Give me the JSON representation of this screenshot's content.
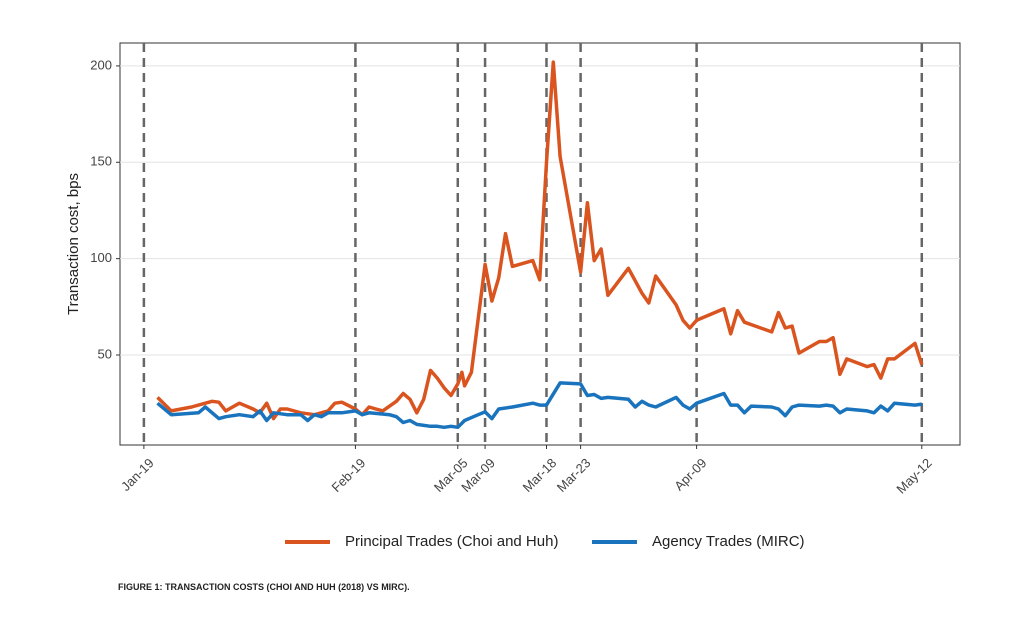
{
  "chart_data": {
    "type": "line",
    "y_label": "Transaction cost, bps",
    "caption": "FIGURE 1: TRANSACTION COSTS (CHOI AND HUH (2018) VS MIRC).",
    "xlim": [
      15.5,
      138.6
    ],
    "xticks": [
      {
        "value": 19,
        "label": "Jan-19"
      },
      {
        "value": 50,
        "label": "Feb-19"
      },
      {
        "value": 65,
        "label": "Mar-05"
      },
      {
        "value": 69,
        "label": "Mar-09"
      },
      {
        "value": 78,
        "label": "Mar-18"
      },
      {
        "value": 83,
        "label": "Mar-23"
      },
      {
        "value": 100,
        "label": "Apr-09"
      },
      {
        "value": 133,
        "label": "May-12"
      }
    ],
    "ylim": [
      3.3,
      211.9
    ],
    "yticks": [
      50,
      100,
      150,
      200
    ],
    "grid": true,
    "xtick_lines": "dashed",
    "legend": "bottom",
    "series": [
      {
        "name": "Principal Trades (Choi and Huh)",
        "color": "#d9541f",
        "x": [
          21,
          23,
          26,
          28,
          29,
          30,
          31,
          32,
          33,
          35,
          36,
          37,
          38,
          39,
          40,
          42,
          44,
          45,
          46,
          47,
          48,
          50,
          51,
          52,
          53,
          54,
          56,
          57,
          58,
          59,
          60,
          61,
          62,
          63,
          64,
          65,
          65.6,
          66,
          67,
          69,
          70,
          71,
          72,
          73,
          76,
          77,
          78,
          79,
          80,
          83,
          84,
          85,
          86,
          87,
          90,
          92,
          93,
          94,
          97,
          98,
          99,
          100,
          104,
          105,
          106,
          107,
          111,
          112,
          113,
          114,
          115,
          118,
          119,
          120,
          121,
          122,
          125,
          126,
          127,
          128,
          129,
          132,
          133
        ],
        "values": [
          28,
          21,
          23,
          25,
          26,
          25.5,
          21,
          23,
          25,
          22,
          20,
          25,
          17,
          22,
          22,
          20,
          19,
          20,
          21,
          25,
          25.5,
          22,
          19,
          23,
          22,
          21,
          26,
          30,
          27,
          20,
          27,
          42,
          38,
          33,
          29,
          35,
          41,
          34,
          41,
          97,
          78,
          90,
          113,
          96,
          99,
          89,
          150,
          202,
          153,
          93,
          129,
          99,
          105,
          81,
          95,
          82,
          77,
          91,
          76,
          68,
          64,
          68,
          74,
          61,
          73,
          67,
          62,
          72,
          64,
          65,
          51,
          57,
          57,
          59,
          40,
          48,
          44,
          45,
          38,
          48,
          48,
          56,
          45
        ]
      },
      {
        "name": "Agency Trades (MIRC)",
        "color": "#1a74bd",
        "x": [
          21,
          23,
          27,
          28,
          30,
          31,
          33,
          35,
          36,
          37,
          38,
          40,
          42,
          43,
          44,
          45,
          46,
          48,
          50,
          51,
          52,
          55,
          56,
          57,
          58,
          59,
          61,
          62,
          63,
          64,
          65,
          66,
          68,
          69,
          70,
          71,
          73,
          76,
          77,
          78,
          80,
          83,
          84,
          85,
          86,
          87,
          90,
          91,
          92,
          93,
          94,
          97,
          98,
          99,
          100,
          104,
          105,
          106,
          107,
          108,
          111,
          112,
          113,
          114,
          115,
          118,
          119,
          120,
          121,
          122,
          125,
          126,
          127,
          128,
          129,
          132,
          133
        ],
        "values": [
          25,
          19,
          20,
          23,
          17,
          18,
          19,
          18,
          21,
          16,
          20,
          19,
          19,
          16,
          19,
          18,
          20,
          20,
          21,
          19,
          20,
          19,
          18,
          15,
          16,
          14,
          13,
          13,
          12.5,
          13,
          12.5,
          16,
          19,
          20.5,
          17,
          22,
          23,
          25,
          24,
          24,
          35.5,
          35,
          29,
          29.5,
          27.5,
          28,
          27,
          23,
          26,
          24,
          23,
          28,
          24,
          22,
          25,
          30,
          24,
          24,
          20,
          23.5,
          23,
          22,
          18.5,
          23,
          24,
          23.5,
          24,
          23.5,
          20,
          22,
          21,
          20,
          23.5,
          21,
          25,
          24,
          24.5
        ]
      }
    ]
  }
}
